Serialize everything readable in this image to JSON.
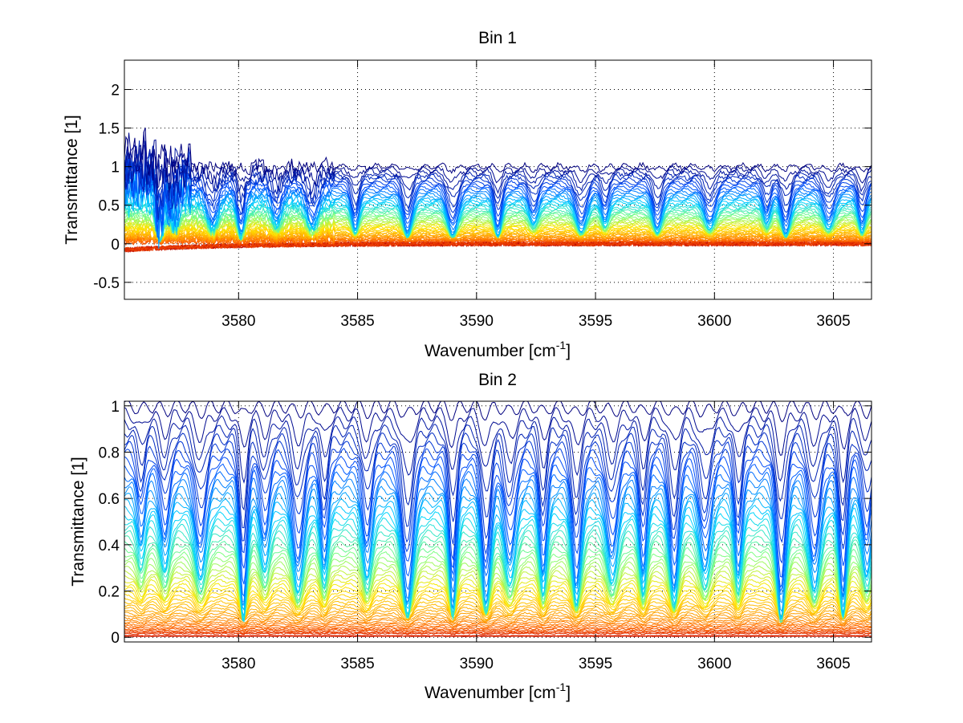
{
  "chart_data": [
    {
      "type": "line",
      "title": "Bin 1",
      "xlabel": "Wavenumber [cm",
      "xlabel_sup": "-1",
      "xlabel_end": "]",
      "ylabel": "Transmittance [1]",
      "xlim": [
        3575.2,
        3606.6
      ],
      "ylim": [
        -0.72,
        2.38
      ],
      "xticks": [
        3580,
        3585,
        3590,
        3595,
        3600,
        3605
      ],
      "xtick_labels": [
        "3580",
        "3585",
        "3590",
        "3595",
        "3600",
        "3605"
      ],
      "yticks": [
        -0.5,
        0,
        0.5,
        1,
        1.5,
        2
      ],
      "ytick_labels": [
        "-0.5",
        "0",
        "0.5",
        "1",
        "1.5",
        "2"
      ],
      "grid": true,
      "grid_style": "dotted",
      "series_count": 60,
      "colormap": "jet",
      "colors": [
        "#00007f",
        "#0050ff",
        "#00d4ff",
        "#7fff7f",
        "#ffe600",
        "#ffaa00",
        "#ff6a00",
        "#dd2200",
        "#a00000"
      ],
      "line_centers": [
        3576.7,
        3577.3,
        3578.9,
        3580.1,
        3581.6,
        3583.1,
        3584.9,
        3587.1,
        3589.0,
        3590.9,
        3592.4,
        3594.4,
        3595.4,
        3597.6,
        3599.8,
        3602.2,
        3603.0,
        3604.8,
        3606.2
      ],
      "line_strengths": [
        1.0,
        0.6,
        0.7,
        0.9,
        0.6,
        0.7,
        0.8,
        0.9,
        0.9,
        0.9,
        0.6,
        0.8,
        0.6,
        0.8,
        0.7,
        0.6,
        0.9,
        0.7,
        0.8
      ],
      "baseline_transmittance_range": [
        0.0,
        1.0
      ]
    },
    {
      "type": "line",
      "title": "Bin 2",
      "xlabel": "Wavenumber [cm",
      "xlabel_sup": "-1",
      "xlabel_end": "]",
      "ylabel": "Transmittance [1]",
      "xlim": [
        3575.2,
        3606.6
      ],
      "ylim": [
        -0.02,
        1.02
      ],
      "xticks": [
        3580,
        3585,
        3590,
        3595,
        3600,
        3605
      ],
      "xtick_labels": [
        "3580",
        "3585",
        "3590",
        "3595",
        "3600",
        "3605"
      ],
      "yticks": [
        0,
        0.2,
        0.4,
        0.6,
        0.8,
        1
      ],
      "ytick_labels": [
        "0",
        "0.2",
        "0.4",
        "0.6",
        "0.8",
        "1"
      ],
      "grid": true,
      "grid_style": "dotted",
      "series_count": 60,
      "colormap": "jet",
      "colors": [
        "#00007f",
        "#0050ff",
        "#00d4ff",
        "#7fff7f",
        "#ffe600",
        "#ffaa00",
        "#ff6a00",
        "#dd2200",
        "#a00000"
      ],
      "line_centers": [
        3575.9,
        3576.9,
        3578.4,
        3580.2,
        3581.1,
        3582.5,
        3583.6,
        3585.4,
        3587.1,
        3589.0,
        3590.4,
        3591.4,
        3592.8,
        3594.2,
        3595.7,
        3597.0,
        3598.3,
        3599.6,
        3601.0,
        3602.8,
        3604.2,
        3605.4,
        3606.4
      ],
      "line_strengths": [
        0.4,
        0.5,
        0.6,
        0.95,
        0.5,
        0.7,
        0.6,
        0.6,
        0.9,
        0.9,
        0.85,
        0.6,
        0.7,
        0.8,
        0.6,
        0.7,
        0.8,
        0.6,
        0.65,
        0.95,
        0.7,
        0.9,
        0.6
      ],
      "baseline_transmittance_range": [
        0.0,
        1.0
      ]
    }
  ]
}
